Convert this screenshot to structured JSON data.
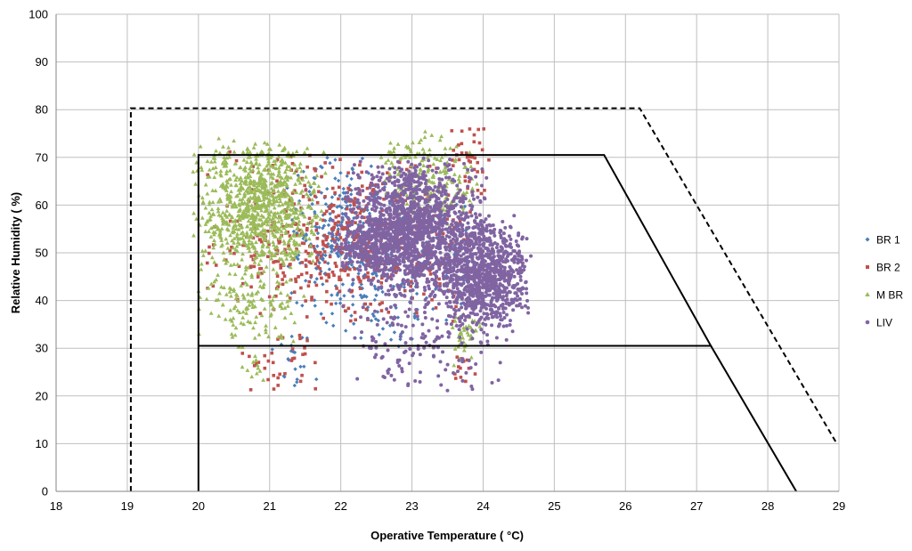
{
  "chart_data": {
    "type": "scatter",
    "title": "",
    "xlabel": "Operative Temperature ( °C)",
    "ylabel": "Relative Humidity ( %)",
    "xlim": [
      18,
      29
    ],
    "ylim": [
      0,
      100
    ],
    "xticks": [
      "18",
      "19",
      "20",
      "21",
      "22",
      "23",
      "24",
      "25",
      "26",
      "27",
      "28",
      "29"
    ],
    "yticks": [
      "0",
      "10",
      "20",
      "30",
      "40",
      "50",
      "60",
      "70",
      "80",
      "90",
      "100"
    ],
    "grid": true,
    "legend_position": "right",
    "series": [
      {
        "name": "BR 1",
        "color": "#4a7ebb",
        "marker": "diamond",
        "clusters": [
          {
            "x": [
              21.2,
              22.8
            ],
            "y": [
              35,
              72
            ],
            "n": 260
          },
          {
            "x": [
              21.5,
              24.0
            ],
            "y": [
              30,
              65
            ],
            "n": 180
          },
          {
            "x": [
              21.0,
              21.7
            ],
            "y": [
              20,
              34
            ],
            "n": 20
          }
        ]
      },
      {
        "name": "BR 2",
        "color": "#c0504d",
        "marker": "square",
        "clusters": [
          {
            "x": [
              20.0,
              24.0
            ],
            "y": [
              33,
              72
            ],
            "n": 520
          },
          {
            "x": [
              20.5,
              21.8
            ],
            "y": [
              20,
              34
            ],
            "n": 35
          },
          {
            "x": [
              23.5,
              24.1
            ],
            "y": [
              60,
              80
            ],
            "n": 40
          },
          {
            "x": [
              23.5,
              23.9
            ],
            "y": [
              22,
              30
            ],
            "n": 12
          }
        ]
      },
      {
        "name": "M BR",
        "color": "#9bbb59",
        "marker": "triangle",
        "clusters": [
          {
            "x": [
              19.9,
              21.8
            ],
            "y": [
              45,
              75
            ],
            "n": 900
          },
          {
            "x": [
              19.9,
              21.5
            ],
            "y": [
              30,
              50
            ],
            "n": 140
          },
          {
            "x": [
              22.5,
              24.0
            ],
            "y": [
              55,
              76
            ],
            "n": 200
          },
          {
            "x": [
              20.3,
              21.0
            ],
            "y": [
              22,
              32
            ],
            "n": 15
          },
          {
            "x": [
              23.5,
              24.0
            ],
            "y": [
              25,
              40
            ],
            "n": 40
          }
        ]
      },
      {
        "name": "LIV",
        "color": "#8064a2",
        "marker": "circle",
        "clusters": [
          {
            "x": [
              22.0,
              24.1
            ],
            "y": [
              40,
              70
            ],
            "n": 1500
          },
          {
            "x": [
              23.4,
              24.7
            ],
            "y": [
              33,
              58
            ],
            "n": 900
          },
          {
            "x": [
              22.0,
              24.4
            ],
            "y": [
              20,
              45
            ],
            "n": 180
          },
          {
            "x": [
              21.8,
              23.0
            ],
            "y": [
              45,
              58
            ],
            "n": 200
          }
        ]
      }
    ],
    "comfort_zones": [
      {
        "style": "solid",
        "points": [
          [
            20.0,
            0
          ],
          [
            20.0,
            70.5
          ],
          [
            25.7,
            70.5
          ],
          [
            27.2,
            30.5
          ],
          [
            20.0,
            30.5
          ]
        ],
        "extra_line": [
          [
            27.2,
            30.5
          ],
          [
            28.4,
            0
          ]
        ]
      },
      {
        "style": "dashed",
        "points": [
          [
            19.05,
            0
          ],
          [
            19.05,
            80.3
          ],
          [
            26.2,
            80.3
          ],
          [
            28.97,
            10
          ]
        ]
      }
    ]
  }
}
